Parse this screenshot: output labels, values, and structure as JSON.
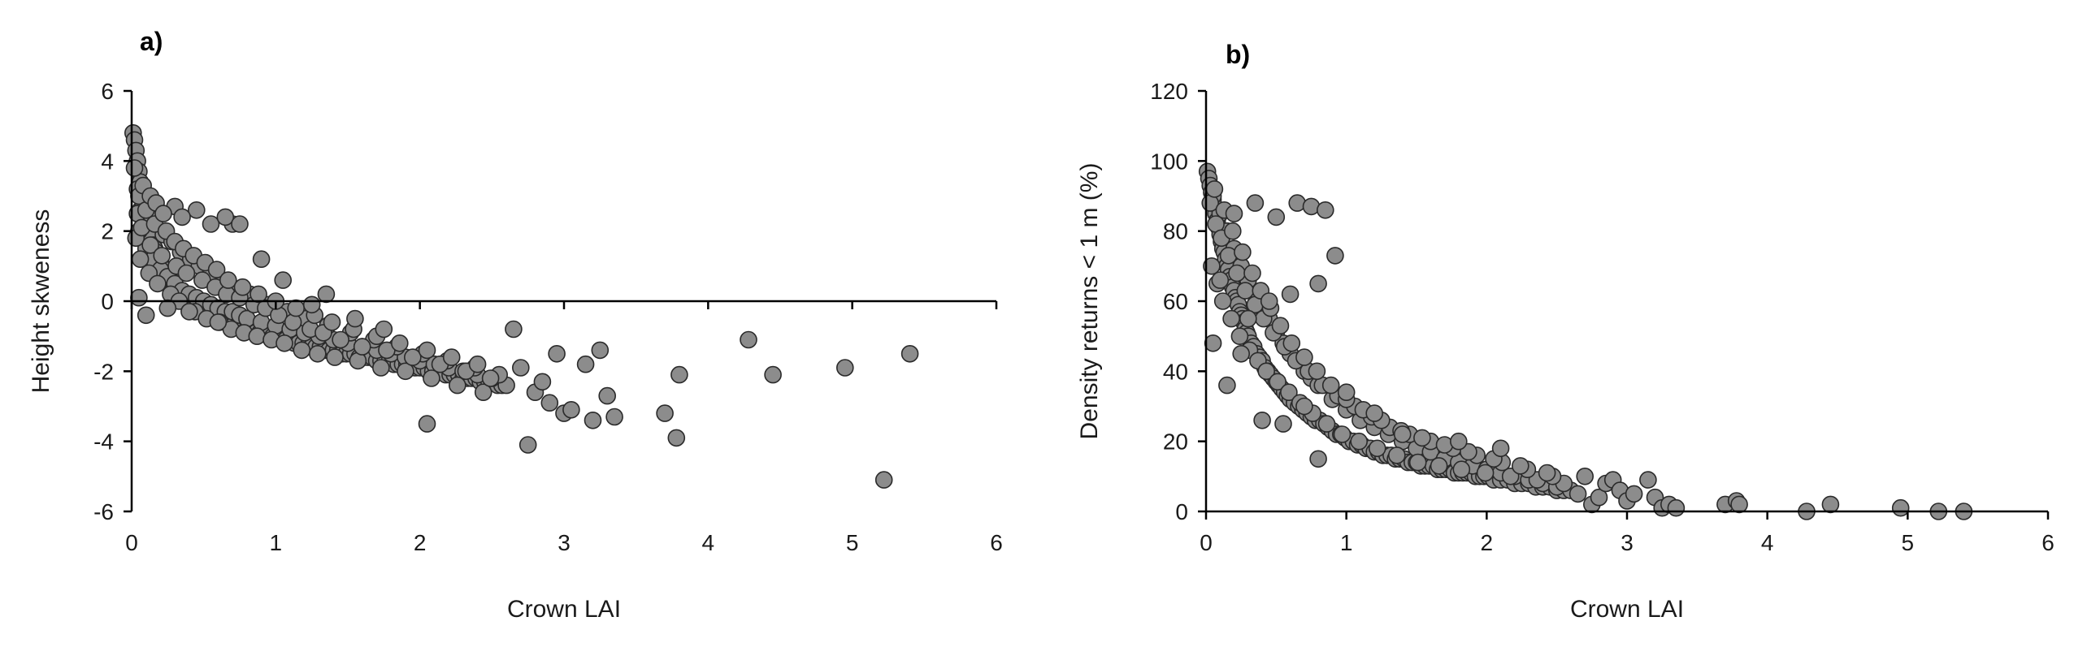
{
  "chart_data": [
    {
      "type": "scatter",
      "panel_label": "a)",
      "xlabel": "Crown LAI",
      "ylabel": "Height skweness",
      "xlim": [
        0,
        6
      ],
      "ylim": [
        -6,
        6
      ],
      "xticks": [
        0,
        1,
        2,
        3,
        4,
        5,
        6
      ],
      "yticks": [
        -6,
        -4,
        -2,
        0,
        2,
        4,
        6
      ],
      "grid": false,
      "legend": "none",
      "marker_color": "#8c8c8c",
      "marker_edge": "#2a2a2a",
      "x": [
        0.01,
        0.02,
        0.03,
        0.04,
        0.05,
        0.06,
        0.07,
        0.08,
        0.09,
        0.1,
        0.02,
        0.04,
        0.06,
        0.08,
        0.11,
        0.12,
        0.13,
        0.14,
        0.15,
        0.16,
        0.17,
        0.18,
        0.19,
        0.2,
        0.21,
        0.22,
        0.23,
        0.24,
        0.25,
        0.26,
        0.27,
        0.28,
        0.29,
        0.3,
        0.31,
        0.32,
        0.33,
        0.34,
        0.35,
        0.36,
        0.37,
        0.38,
        0.39,
        0.4,
        0.42,
        0.44,
        0.46,
        0.48,
        0.5,
        0.52,
        0.54,
        0.56,
        0.58,
        0.6,
        0.62,
        0.64,
        0.66,
        0.68,
        0.7,
        0.72,
        0.74,
        0.76,
        0.78,
        0.8,
        0.83,
        0.86,
        0.89,
        0.92,
        0.95,
        0.98,
        1.01,
        1.04,
        1.07,
        1.1,
        1.13,
        1.16,
        1.19,
        1.22,
        1.25,
        1.28,
        1.31,
        1.34,
        1.37,
        1.4,
        1.43,
        1.46,
        1.49,
        1.52,
        1.55,
        1.58,
        1.61,
        1.64,
        1.67,
        1.7,
        1.73,
        1.76,
        1.79,
        1.82,
        1.85,
        1.88,
        1.91,
        1.94,
        1.97,
        2.0,
        2.03,
        2.06,
        2.09,
        2.12,
        2.15,
        2.18,
        2.21,
        2.24,
        2.27,
        2.3,
        2.33,
        2.36,
        2.39,
        2.42,
        2.45,
        2.48,
        2.51,
        2.54,
        2.57,
        2.6,
        0.05,
        0.1,
        0.15,
        0.2,
        0.25,
        0.3,
        0.35,
        0.4,
        0.45,
        0.5,
        0.55,
        0.6,
        0.65,
        0.7,
        0.75,
        0.8,
        0.9,
        1.0,
        1.1,
        1.2,
        1.3,
        1.4,
        1.5,
        1.6,
        1.7,
        1.8,
        1.9,
        2.0,
        2.1,
        2.2,
        2.3,
        2.4,
        2.5,
        0.08,
        0.14,
        0.22,
        0.28,
        0.34,
        0.41,
        0.47,
        0.55,
        0.63,
        0.72,
        0.82,
        0.95,
        1.08,
        1.21,
        1.36,
        1.52,
        1.68,
        1.84,
        2.02,
        2.19,
        2.38,
        2.55,
        0.03,
        0.06,
        0.12,
        0.18,
        0.27,
        0.33,
        0.44,
        0.52,
        0.61,
        0.69,
        0.78,
        0.87,
        0.97,
        1.06,
        1.18,
        1.29,
        1.41,
        1.57,
        1.73,
        1.9,
        2.08,
        2.26,
        2.44,
        0.04,
        0.07,
        0.13,
        0.21,
        0.31,
        0.38,
        0.49,
        0.58,
        0.66,
        0.75,
        0.85,
        0.93,
        1.02,
        1.12,
        1.24,
        1.33,
        1.45,
        1.6,
        1.77,
        1.95,
        2.14,
        2.32,
        2.49,
        0.05,
        0.1,
        0.16,
        0.24,
        0.3,
        0.36,
        0.43,
        0.51,
        0.59,
        0.67,
        0.77,
        0.88,
        1.0,
        1.14,
        1.27,
        1.39,
        1.54,
        1.7,
        1.86,
        2.05,
        2.22,
        2.4,
        0.08,
        0.13,
        0.17,
        0.3,
        0.45,
        0.22,
        0.35,
        0.55,
        0.7,
        0.05,
        0.4,
        0.65,
        0.75,
        0.1,
        0.25,
        0.6,
        0.9,
        1.05,
        1.35,
        1.25,
        1.55,
        1.75,
        2.05,
        2.65,
        2.7,
        2.75,
        2.8,
        2.85,
        2.9,
        2.95,
        3.0,
        3.05,
        3.15,
        3.2,
        3.25,
        3.3,
        3.35,
        3.7,
        3.78,
        3.8,
        4.28,
        4.45,
        4.95,
        5.22,
        5.4
      ],
      "y": [
        4.8,
        4.6,
        4.3,
        4.0,
        3.7,
        3.4,
        3.1,
        2.9,
        2.7,
        2.5,
        3.8,
        3.2,
        2.6,
        2.2,
        2.3,
        2.1,
        1.9,
        1.8,
        1.6,
        1.5,
        1.4,
        1.3,
        1.2,
        1.1,
        1.0,
        0.9,
        0.9,
        0.8,
        0.7,
        0.7,
        0.6,
        0.5,
        0.5,
        0.4,
        0.4,
        0.3,
        0.3,
        0.2,
        0.2,
        0.1,
        0.1,
        0.1,
        0.0,
        0.0,
        -0.1,
        -0.1,
        -0.2,
        -0.2,
        -0.2,
        -0.3,
        -0.3,
        -0.4,
        -0.4,
        -0.4,
        -0.5,
        -0.5,
        -0.5,
        -0.6,
        -0.6,
        -0.6,
        -0.7,
        -0.7,
        -0.7,
        -0.8,
        -0.8,
        -0.9,
        -0.9,
        -0.9,
        -1.0,
        -1.0,
        -1.0,
        -1.1,
        -1.1,
        -1.1,
        -1.2,
        -1.2,
        -1.2,
        -1.3,
        -1.3,
        -1.3,
        -1.3,
        -1.4,
        -1.4,
        -1.4,
        -1.4,
        -1.5,
        -1.5,
        -1.5,
        -1.5,
        -1.6,
        -1.6,
        -1.6,
        -1.6,
        -1.7,
        -1.7,
        -1.7,
        -1.7,
        -1.8,
        -1.8,
        -1.8,
        -1.8,
        -1.9,
        -1.9,
        -1.9,
        -1.9,
        -2.0,
        -2.0,
        -2.0,
        -2.0,
        -2.1,
        -2.1,
        -2.1,
        -2.1,
        -2.2,
        -2.2,
        -2.2,
        -2.2,
        -2.3,
        -2.3,
        -2.3,
        -2.3,
        -2.4,
        -2.4,
        -2.4,
        2.0,
        1.5,
        1.2,
        0.9,
        0.7,
        0.5,
        0.3,
        0.2,
        0.1,
        0.0,
        -0.1,
        -0.2,
        -0.3,
        -0.3,
        -0.4,
        -0.5,
        -0.6,
        -0.7,
        -0.8,
        -0.9,
        -1.0,
        -1.1,
        -1.2,
        -1.3,
        -1.4,
        -1.5,
        -1.6,
        -1.7,
        -1.8,
        -1.9,
        -2.0,
        -2.1,
        -2.2,
        2.8,
        2.4,
        1.9,
        1.7,
        1.4,
        1.2,
        1.0,
        0.8,
        0.5,
        0.3,
        0.2,
        -0.1,
        -0.3,
        -0.5,
        -0.7,
        -0.9,
        -1.1,
        -1.3,
        -1.5,
        -1.7,
        -1.9,
        -2.1,
        1.8,
        1.2,
        0.8,
        0.5,
        0.2,
        0.0,
        -0.3,
        -0.5,
        -0.6,
        -0.8,
        -0.9,
        -1.0,
        -1.1,
        -1.2,
        -1.4,
        -1.5,
        -1.6,
        -1.7,
        -1.9,
        -2.0,
        -2.2,
        -2.4,
        -2.6,
        2.5,
        2.1,
        1.6,
        1.3,
        1.0,
        0.8,
        0.6,
        0.4,
        0.2,
        0.1,
        -0.1,
        -0.2,
        -0.4,
        -0.6,
        -0.8,
        -0.9,
        -1.1,
        -1.3,
        -1.4,
        -1.6,
        -1.8,
        -2.0,
        -2.2,
        3.0,
        2.6,
        2.2,
        2.0,
        1.7,
        1.5,
        1.3,
        1.1,
        0.9,
        0.6,
        0.4,
        0.2,
        0.0,
        -0.2,
        -0.4,
        -0.6,
        -0.8,
        -1.0,
        -1.2,
        -1.4,
        -1.6,
        -1.8,
        3.3,
        3.0,
        2.8,
        2.7,
        2.6,
        2.5,
        2.4,
        2.2,
        2.2,
        0.1,
        -0.3,
        2.4,
        2.2,
        -0.4,
        -0.2,
        -0.6,
        1.2,
        0.6,
        0.2,
        -0.1,
        -0.5,
        -0.8,
        -3.5,
        -0.8,
        -1.9,
        -4.1,
        -2.6,
        -2.3,
        -2.9,
        -1.5,
        -3.2,
        -3.1,
        -1.8,
        -3.4,
        -1.4,
        -2.7,
        -3.3,
        -3.2,
        -3.9,
        -2.1,
        -1.1,
        -2.1,
        -1.9,
        -5.1,
        -1.5
      ]
    },
    {
      "type": "scatter",
      "panel_label": "b)",
      "xlabel": "Crown LAI",
      "ylabel": "Density returns < 1 m (%)",
      "xlim": [
        0,
        6
      ],
      "ylim": [
        0,
        120
      ],
      "xticks": [
        0,
        1,
        2,
        3,
        4,
        5,
        6
      ],
      "yticks": [
        0,
        20,
        40,
        60,
        80,
        100,
        120
      ],
      "grid": false,
      "legend": "none",
      "marker_color": "#8c8c8c",
      "marker_edge": "#2a2a2a",
      "x": [
        0.01,
        0.02,
        0.03,
        0.04,
        0.05,
        0.06,
        0.07,
        0.08,
        0.09,
        0.1,
        0.11,
        0.12,
        0.13,
        0.14,
        0.15,
        0.16,
        0.17,
        0.18,
        0.19,
        0.2,
        0.21,
        0.22,
        0.23,
        0.24,
        0.25,
        0.26,
        0.27,
        0.28,
        0.29,
        0.3,
        0.32,
        0.34,
        0.36,
        0.38,
        0.4,
        0.42,
        0.44,
        0.46,
        0.48,
        0.5,
        0.52,
        0.54,
        0.56,
        0.58,
        0.6,
        0.63,
        0.66,
        0.69,
        0.72,
        0.75,
        0.78,
        0.81,
        0.84,
        0.87,
        0.9,
        0.93,
        0.96,
        0.99,
        1.02,
        1.05,
        1.08,
        1.11,
        1.14,
        1.17,
        1.2,
        1.23,
        1.26,
        1.29,
        1.32,
        1.35,
        1.38,
        1.41,
        1.44,
        1.47,
        1.5,
        1.53,
        1.56,
        1.59,
        1.62,
        1.65,
        1.68,
        1.71,
        1.74,
        1.77,
        1.8,
        1.83,
        1.86,
        1.89,
        1.92,
        1.95,
        1.98,
        2.01,
        2.05,
        2.1,
        2.15,
        2.2,
        2.25,
        2.3,
        2.35,
        2.4,
        2.45,
        2.5,
        2.55,
        2.6,
        0.05,
        0.1,
        0.15,
        0.2,
        0.25,
        0.3,
        0.35,
        0.4,
        0.45,
        0.5,
        0.55,
        0.6,
        0.65,
        0.7,
        0.75,
        0.8,
        0.9,
        1.0,
        1.1,
        1.2,
        1.3,
        1.4,
        1.5,
        1.6,
        1.7,
        1.8,
        1.9,
        2.0,
        2.1,
        2.2,
        2.3,
        2.4,
        2.5,
        0.04,
        0.08,
        0.12,
        0.18,
        0.24,
        0.31,
        0.37,
        0.43,
        0.51,
        0.59,
        0.67,
        0.76,
        0.86,
        0.97,
        1.09,
        1.22,
        1.36,
        1.51,
        1.66,
        1.82,
        1.99,
        2.17,
        2.36,
        2.55,
        0.03,
        0.07,
        0.11,
        0.16,
        0.22,
        0.28,
        0.35,
        0.41,
        0.48,
        0.56,
        0.64,
        0.73,
        0.83,
        0.94,
        1.06,
        1.18,
        1.31,
        1.45,
        1.6,
        1.76,
        1.93,
        2.11,
        2.29,
        2.47,
        0.06,
        0.13,
        0.19,
        0.26,
        0.33,
        0.39,
        0.46,
        0.53,
        0.61,
        0.7,
        0.79,
        0.89,
        1.0,
        1.12,
        1.25,
        1.39,
        1.54,
        1.7,
        1.87,
        2.05,
        2.24,
        2.43,
        0.05,
        0.15,
        0.3,
        0.45,
        0.6,
        0.8,
        0.2,
        0.35,
        0.5,
        0.65,
        0.75,
        0.85,
        0.92,
        0.1,
        0.25,
        0.4,
        0.55,
        0.7,
        0.8,
        1.0,
        1.2,
        1.4,
        1.8,
        2.1,
        2.65,
        2.7,
        2.75,
        2.8,
        2.85,
        2.9,
        2.95,
        3.0,
        3.05,
        3.15,
        3.2,
        3.25,
        3.3,
        3.35,
        3.7,
        3.78,
        3.8,
        4.28,
        4.45,
        4.95,
        5.22,
        5.4
      ],
      "y": [
        97,
        95,
        93,
        91,
        89,
        87,
        85,
        83,
        81,
        79,
        77,
        75,
        74,
        72,
        70,
        69,
        67,
        66,
        64,
        63,
        61,
        60,
        59,
        57,
        56,
        55,
        54,
        52,
        51,
        50,
        48,
        47,
        45,
        44,
        43,
        41,
        40,
        39,
        38,
        37,
        36,
        35,
        34,
        33,
        32,
        31,
        30,
        29,
        28,
        27,
        26,
        26,
        25,
        24,
        23,
        22,
        22,
        21,
        20,
        20,
        19,
        19,
        18,
        18,
        17,
        17,
        16,
        16,
        16,
        15,
        15,
        15,
        14,
        14,
        14,
        13,
        13,
        13,
        13,
        12,
        12,
        12,
        12,
        11,
        11,
        11,
        11,
        11,
        10,
        10,
        10,
        10,
        9,
        9,
        9,
        8,
        8,
        8,
        7,
        7,
        7,
        6,
        6,
        6,
        90,
        85,
        80,
        75,
        70,
        66,
        62,
        58,
        55,
        51,
        48,
        45,
        43,
        40,
        38,
        36,
        32,
        29,
        26,
        24,
        22,
        20,
        18,
        17,
        15,
        14,
        13,
        12,
        11,
        10,
        9,
        8,
        7,
        70,
        65,
        60,
        55,
        50,
        46,
        43,
        40,
        37,
        34,
        31,
        28,
        25,
        22,
        20,
        18,
        16,
        14,
        13,
        12,
        11,
        10,
        9,
        8,
        88,
        82,
        78,
        73,
        68,
        63,
        59,
        55,
        51,
        47,
        43,
        40,
        36,
        33,
        30,
        27,
        24,
        22,
        20,
        18,
        16,
        14,
        12,
        10,
        92,
        86,
        80,
        74,
        68,
        63,
        58,
        53,
        48,
        44,
        40,
        36,
        32,
        29,
        26,
        23,
        21,
        19,
        17,
        15,
        13,
        11,
        48,
        36,
        55,
        60,
        62,
        65,
        85,
        88,
        84,
        88,
        87,
        86,
        73,
        66,
        45,
        26,
        25,
        30,
        15,
        34,
        28,
        22,
        20,
        18,
        5,
        10,
        2,
        4,
        8,
        9,
        6,
        3,
        5,
        9,
        4,
        1,
        2,
        1,
        2,
        3,
        2,
        0,
        2,
        1,
        0,
        0
      ]
    }
  ]
}
